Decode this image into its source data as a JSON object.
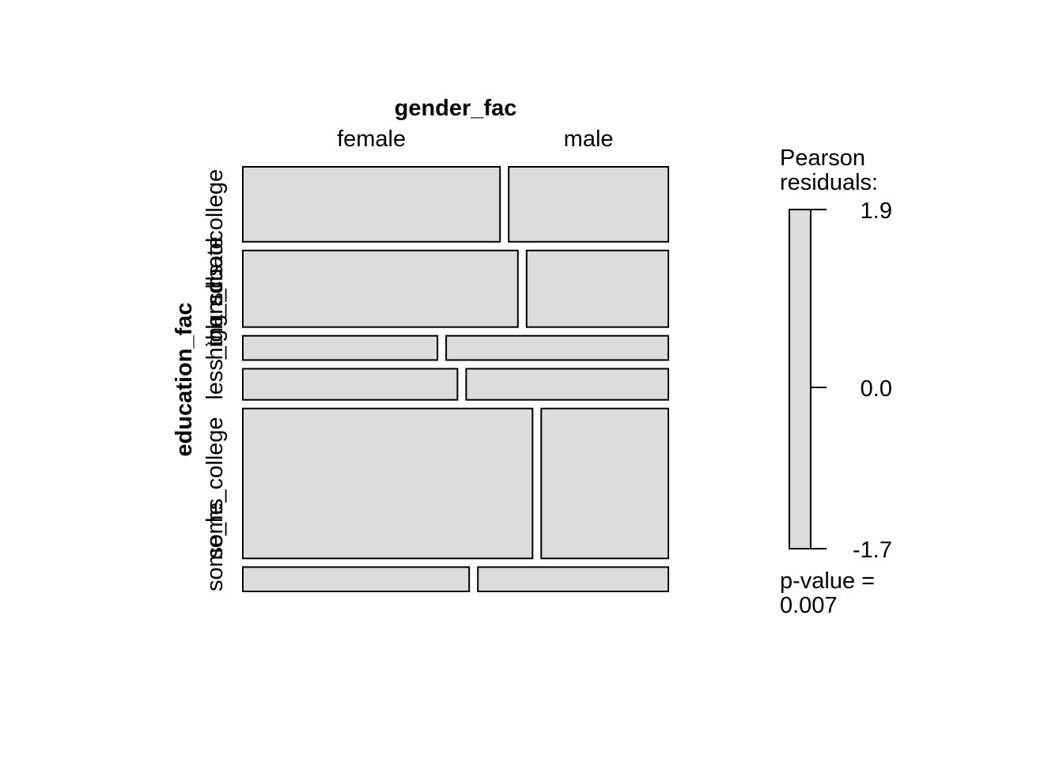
{
  "chart_data": {
    "type": "mosaic",
    "title": "",
    "x_variable": "gender_fac",
    "y_variable": "education_fac",
    "x_levels": [
      "female",
      "male"
    ],
    "y_levels": [
      "college",
      "graduate",
      "high_school",
      "less_than_hs",
      "some_college",
      "some_hs"
    ],
    "y_labels_printed": [
      "college",
      "graduate",
      "high_school",
      "less_than_hs",
      "some_college",
      "some_hs"
    ],
    "row_proportions": [
      0.176,
      0.18,
      0.057,
      0.073,
      0.352,
      0.057
    ],
    "female_share_by_row": [
      0.617,
      0.66,
      0.467,
      0.515,
      0.695,
      0.543
    ],
    "fill_color": "#dcdcdc",
    "legend": {
      "title_line1": "Pearson",
      "title_line2": "residuals:",
      "max_label": "1.9",
      "mid_label": "0.0",
      "min_label": "-1.7",
      "range": [
        -1.7,
        1.9
      ],
      "placement": "right"
    },
    "p_value": {
      "line1": "p-value =",
      "line2": "0.007",
      "value": 0.007
    }
  }
}
